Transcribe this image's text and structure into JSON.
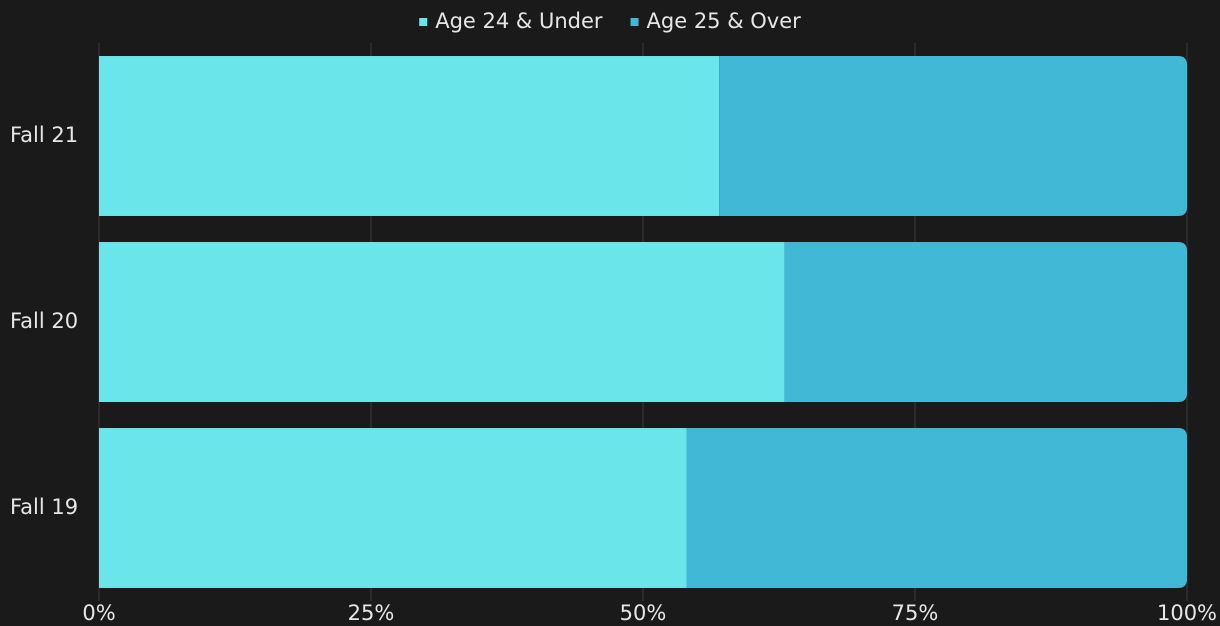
{
  "chart_data": {
    "type": "stacked_bar_horizontal",
    "categories": [
      "Fall 21",
      "Fall 20",
      "Fall 19"
    ],
    "series": [
      {
        "name": "Age 24 & Under",
        "color": "#6ae6ea",
        "values": [
          57,
          63,
          54
        ]
      },
      {
        "name": "Age 25 & Over",
        "color": "#40b8d6",
        "values": [
          43,
          37,
          46
        ]
      }
    ],
    "xlim": [
      0,
      100
    ],
    "xticks": [
      {
        "value": 0,
        "label": "0%"
      },
      {
        "value": 25,
        "label": "25%"
      },
      {
        "value": 50,
        "label": "50%"
      },
      {
        "value": 75,
        "label": "75%"
      },
      {
        "value": 100,
        "label": "100%"
      }
    ],
    "grid": true,
    "legend": "top"
  }
}
